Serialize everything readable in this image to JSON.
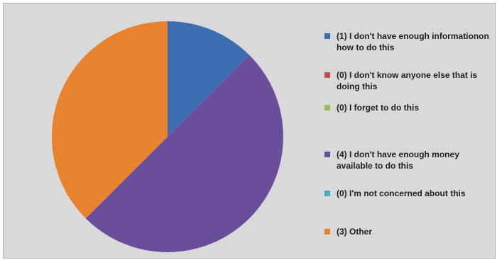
{
  "chart_data": {
    "type": "pie",
    "title": "",
    "slices": [
      {
        "label": "(1) I don't have enough informationon how to do this",
        "value": 1,
        "color": "#3f6db1"
      },
      {
        "label": "(0) I don't know anyone else that is doing this",
        "value": 0,
        "color": "#c0504d"
      },
      {
        "label": "(0) I forget to do this",
        "value": 0,
        "color": "#9bbb59"
      },
      {
        "label": "(4) I don't have enough money available to do this",
        "value": 4,
        "color": "#6b4e9b"
      },
      {
        "label": "(0) I'm not concerned about this",
        "value": 0,
        "color": "#4bacc6"
      },
      {
        "label": "(3) Other",
        "value": 3,
        "color": "#e9822e"
      }
    ],
    "legend_position": "right"
  }
}
